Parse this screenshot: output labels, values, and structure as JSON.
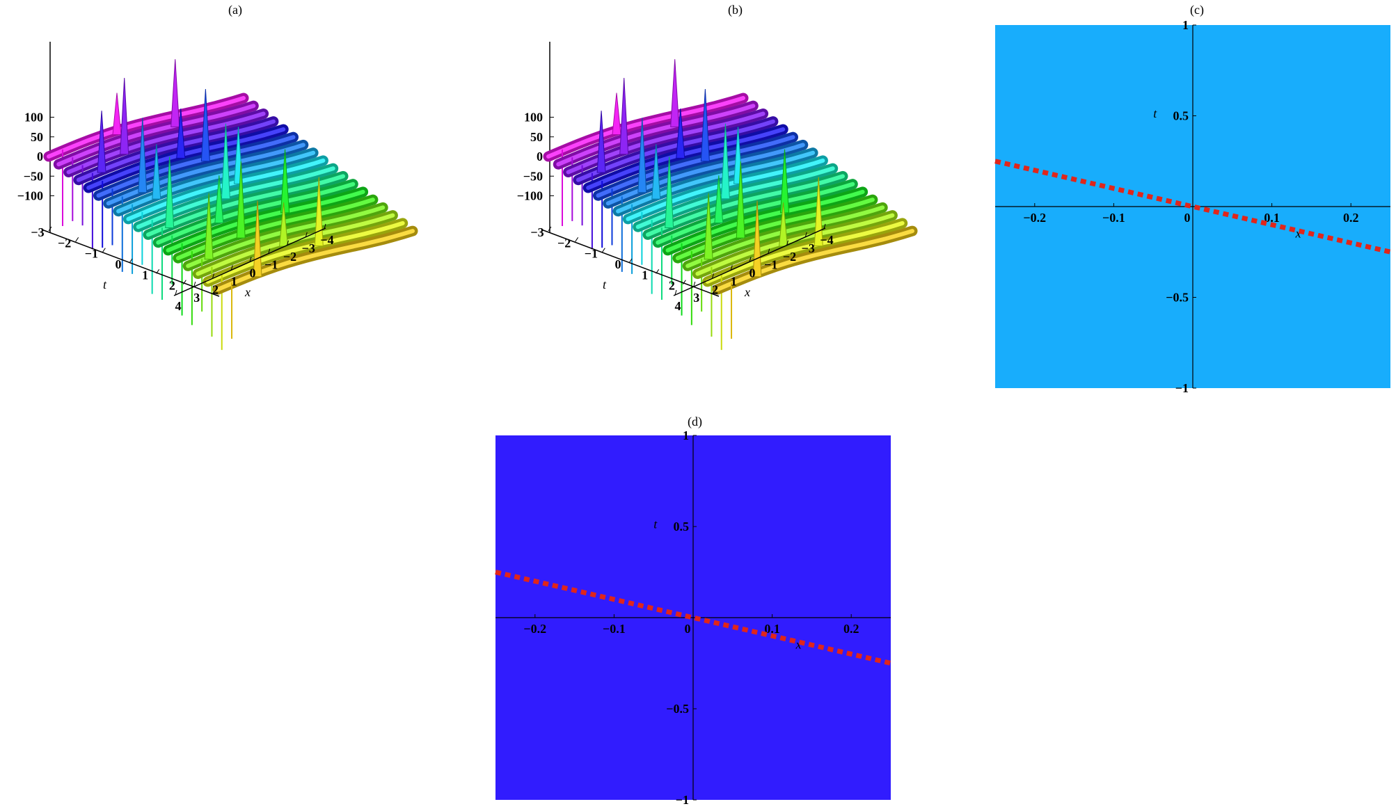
{
  "panels": [
    {
      "label": "(a)"
    },
    {
      "label": "(b)"
    },
    {
      "label": "(c)"
    },
    {
      "label": "(d)"
    }
  ],
  "chart_data": [
    {
      "type": "surface",
      "panel": "(a)",
      "zlabel": "",
      "xlabel": "x",
      "ylabel": "t",
      "z_ticks": [
        100,
        50,
        0,
        -50,
        -100
      ],
      "t_ticks": [
        -3,
        -2,
        -1,
        0,
        1,
        2
      ],
      "x_ticks": [
        -4,
        -3,
        -2,
        -1,
        0,
        1,
        2,
        3,
        4
      ],
      "t_range": [
        -3,
        3
      ],
      "x_range": [
        -4,
        4
      ],
      "z_range": [
        -100,
        100
      ],
      "colormap": "rainbow",
      "ridge_count": 18
    },
    {
      "type": "surface",
      "panel": "(b)",
      "zlabel": "",
      "xlabel": "x",
      "ylabel": "t",
      "z_ticks": [
        100,
        50,
        0,
        -50,
        -100
      ],
      "t_ticks": [
        -3,
        -2,
        -1,
        0,
        1,
        2
      ],
      "x_ticks": [
        -4,
        -3,
        -2,
        -1,
        0,
        1,
        2,
        3,
        4
      ],
      "t_range": [
        -3,
        3
      ],
      "x_range": [
        -4,
        4
      ],
      "z_range": [
        -100,
        100
      ],
      "colormap": "rainbow",
      "ridge_count": 18
    },
    {
      "type": "line",
      "panel": "(c)",
      "xlabel": "x",
      "ylabel": "t",
      "xlim": [
        -0.25,
        0.25
      ],
      "ylim": [
        -1,
        1
      ],
      "x_ticks": [
        "-0.2",
        "-0.1",
        "0",
        "0.1",
        "0.2"
      ],
      "y_ticks": [
        "1",
        "0.5",
        "-0.5",
        "-1"
      ],
      "background": "#18adfc",
      "series": [
        {
          "x": [
            -0.25,
            0.25
          ],
          "y": [
            0.25,
            -0.25
          ],
          "style": "dotted",
          "color": "#e0261b"
        }
      ]
    },
    {
      "type": "line",
      "panel": "(d)",
      "xlabel": "x",
      "ylabel": "t",
      "xlim": [
        -0.25,
        0.25
      ],
      "ylim": [
        -1,
        1
      ],
      "x_ticks": [
        "-0.2",
        "-0.1",
        "0",
        "0.1",
        "0.2"
      ],
      "y_ticks": [
        "1",
        "0.5",
        "-0.5",
        "-1"
      ],
      "background": "#311cfe",
      "series": [
        {
          "x": [
            -0.25,
            0.25
          ],
          "y": [
            0.25,
            -0.25
          ],
          "style": "dotted",
          "color": "#e0261b"
        }
      ]
    }
  ]
}
